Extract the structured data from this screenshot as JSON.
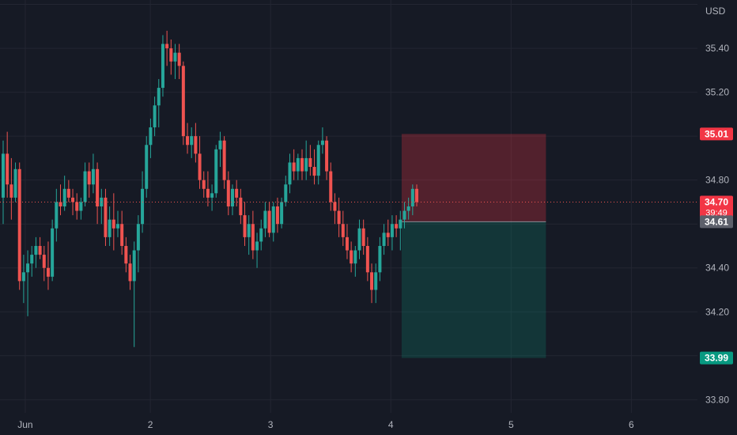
{
  "chart_data": {
    "type": "candlestick",
    "currency": "USD",
    "y_axis": {
      "min": 33.74,
      "max": 35.62,
      "ticks": [
        35.4,
        35.2,
        34.8,
        34.4,
        34.2,
        33.8
      ]
    },
    "x_axis": {
      "labels": [
        {
          "text": "Jun",
          "x_day": 0.96
        },
        {
          "text": "2",
          "x_day": 2.0
        },
        {
          "text": "3",
          "x_day": 3.0
        },
        {
          "text": "4",
          "x_day": 4.0
        },
        {
          "text": "5",
          "x_day": 5.0
        },
        {
          "text": "6",
          "x_day": 6.0
        }
      ],
      "range_day": [
        0.75,
        6.55
      ]
    },
    "grid": true,
    "colors": {
      "up": "#26a69a",
      "down": "#ef5350",
      "background": "#161a25",
      "grid": "#232632"
    },
    "current_price": {
      "value": 34.7,
      "label": "34.70",
      "countdown": "39:49"
    },
    "entry": {
      "value": 34.61,
      "label": "34.61"
    },
    "stop": {
      "value": 35.01,
      "label": "35.01"
    },
    "target": {
      "value": 33.99,
      "label": "33.99"
    },
    "position": {
      "side": "short",
      "start_day": 4.09,
      "end_day": 5.29
    },
    "candles": [
      [
        34.72,
        34.98,
        34.6,
        34.92
      ],
      [
        34.92,
        35.02,
        34.72,
        34.78
      ],
      [
        34.78,
        34.9,
        34.62,
        34.72
      ],
      [
        34.72,
        34.88,
        34.7,
        34.85
      ],
      [
        34.85,
        34.88,
        34.3,
        34.34
      ],
      [
        34.34,
        34.46,
        34.24,
        34.38
      ],
      [
        34.38,
        34.48,
        34.18,
        34.42
      ],
      [
        34.42,
        34.5,
        34.36,
        34.46
      ],
      [
        34.46,
        34.54,
        34.4,
        34.5
      ],
      [
        34.5,
        34.54,
        34.44,
        34.46
      ],
      [
        34.46,
        34.5,
        34.34,
        34.4
      ],
      [
        34.4,
        34.52,
        34.3,
        34.36
      ],
      [
        34.36,
        34.62,
        34.34,
        34.58
      ],
      [
        34.58,
        34.76,
        34.52,
        34.7
      ],
      [
        34.7,
        34.78,
        34.64,
        34.68
      ],
      [
        34.68,
        34.82,
        34.66,
        34.76
      ],
      [
        34.76,
        34.8,
        34.7,
        34.72
      ],
      [
        34.72,
        34.76,
        34.64,
        34.7
      ],
      [
        34.7,
        34.74,
        34.62,
        34.66
      ],
      [
        34.66,
        34.72,
        34.62,
        34.7
      ],
      [
        34.7,
        34.88,
        34.68,
        34.84
      ],
      [
        34.84,
        34.88,
        34.72,
        34.78
      ],
      [
        34.78,
        34.92,
        34.74,
        34.85
      ],
      [
        34.85,
        34.88,
        34.6,
        34.68
      ],
      [
        34.68,
        34.76,
        34.6,
        34.72
      ],
      [
        34.72,
        34.76,
        34.5,
        34.54
      ],
      [
        34.54,
        34.68,
        34.5,
        34.62
      ],
      [
        34.62,
        34.74,
        34.48,
        34.58
      ],
      [
        34.58,
        34.66,
        34.54,
        34.6
      ],
      [
        34.6,
        34.66,
        34.46,
        34.5
      ],
      [
        34.5,
        34.54,
        34.38,
        34.42
      ],
      [
        34.42,
        34.46,
        34.3,
        34.34
      ],
      [
        34.34,
        34.52,
        34.04,
        34.48
      ],
      [
        34.48,
        34.64,
        34.38,
        34.6
      ],
      [
        34.6,
        34.84,
        34.56,
        34.76
      ],
      [
        34.76,
        35.0,
        34.72,
        34.96
      ],
      [
        34.96,
        35.08,
        34.9,
        35.04
      ],
      [
        35.04,
        35.18,
        35.0,
        35.14
      ],
      [
        35.14,
        35.26,
        35.04,
        35.22
      ],
      [
        35.22,
        35.46,
        35.18,
        35.42
      ],
      [
        35.42,
        35.48,
        35.32,
        35.4
      ],
      [
        35.4,
        35.44,
        35.28,
        35.34
      ],
      [
        35.34,
        35.42,
        35.26,
        35.38
      ],
      [
        35.38,
        35.42,
        35.26,
        35.32
      ],
      [
        35.32,
        35.34,
        34.96,
        35.0
      ],
      [
        35.0,
        35.06,
        34.92,
        34.96
      ],
      [
        34.96,
        35.04,
        34.9,
        35.0
      ],
      [
        35.0,
        35.06,
        34.88,
        34.92
      ],
      [
        34.92,
        35.0,
        34.76,
        34.8
      ],
      [
        34.8,
        34.84,
        34.72,
        34.76
      ],
      [
        34.76,
        34.84,
        34.68,
        34.72
      ],
      [
        34.72,
        34.78,
        34.66,
        34.74
      ],
      [
        34.74,
        34.96,
        34.72,
        34.94
      ],
      [
        34.94,
        35.02,
        34.86,
        34.98
      ],
      [
        34.98,
        35.0,
        34.76,
        34.8
      ],
      [
        34.8,
        34.84,
        34.64,
        34.68
      ],
      [
        34.68,
        34.78,
        34.64,
        34.76
      ],
      [
        34.76,
        34.8,
        34.68,
        34.72
      ],
      [
        34.72,
        34.76,
        34.6,
        34.64
      ],
      [
        34.64,
        34.7,
        34.5,
        34.54
      ],
      [
        34.54,
        34.64,
        34.46,
        34.6
      ],
      [
        34.6,
        34.66,
        34.44,
        34.48
      ],
      [
        34.48,
        34.56,
        34.4,
        34.52
      ],
      [
        34.52,
        34.62,
        34.48,
        34.58
      ],
      [
        34.58,
        34.7,
        34.54,
        34.66
      ],
      [
        34.66,
        34.7,
        34.54,
        34.56
      ],
      [
        34.56,
        34.7,
        34.52,
        34.68
      ],
      [
        34.68,
        34.72,
        34.56,
        34.6
      ],
      [
        34.6,
        34.72,
        34.58,
        34.7
      ],
      [
        34.7,
        34.82,
        34.68,
        34.78
      ],
      [
        34.78,
        34.92,
        34.74,
        34.88
      ],
      [
        34.88,
        34.94,
        34.8,
        34.84
      ],
      [
        34.84,
        34.92,
        34.8,
        34.9
      ],
      [
        34.9,
        34.94,
        34.8,
        34.84
      ],
      [
        34.84,
        34.98,
        34.8,
        34.9
      ],
      [
        34.9,
        34.96,
        34.82,
        34.86
      ],
      [
        34.86,
        34.94,
        34.78,
        34.82
      ],
      [
        34.82,
        34.98,
        34.78,
        34.96
      ],
      [
        34.96,
        35.04,
        34.92,
        34.98
      ],
      [
        34.98,
        35.0,
        34.8,
        34.84
      ],
      [
        34.84,
        34.88,
        34.66,
        34.7
      ],
      [
        34.7,
        34.74,
        34.6,
        34.66
      ],
      [
        34.66,
        34.72,
        34.54,
        34.6
      ],
      [
        34.6,
        34.66,
        34.5,
        34.54
      ],
      [
        34.54,
        34.6,
        34.44,
        34.48
      ],
      [
        34.48,
        34.52,
        34.38,
        34.42
      ],
      [
        34.42,
        34.5,
        34.36,
        34.48
      ],
      [
        34.48,
        34.62,
        34.44,
        34.58
      ],
      [
        34.58,
        34.62,
        34.46,
        34.5
      ],
      [
        34.5,
        34.54,
        34.34,
        34.38
      ],
      [
        34.38,
        34.42,
        34.24,
        34.3
      ],
      [
        34.3,
        34.42,
        34.24,
        34.38
      ],
      [
        34.38,
        34.54,
        34.34,
        34.5
      ],
      [
        34.5,
        34.6,
        34.46,
        34.56
      ],
      [
        34.56,
        34.62,
        34.5,
        34.54
      ],
      [
        34.54,
        34.64,
        34.48,
        34.6
      ],
      [
        34.6,
        34.64,
        34.54,
        34.58
      ],
      [
        34.58,
        34.66,
        34.48,
        34.62
      ],
      [
        34.62,
        34.7,
        34.58,
        34.66
      ],
      [
        34.66,
        34.72,
        34.62,
        34.68
      ],
      [
        34.68,
        34.78,
        34.64,
        34.76
      ],
      [
        34.76,
        34.78,
        34.68,
        34.7
      ]
    ]
  }
}
